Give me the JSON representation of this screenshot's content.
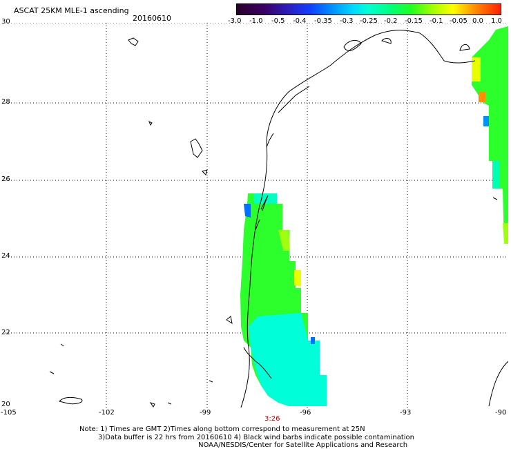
{
  "header": {
    "title": "ASCAT 25KM MLE-1 ascending",
    "date": "20160610"
  },
  "colorbar": {
    "ticks": [
      "-3.0",
      "-1.0",
      "-0.5",
      "-0.4",
      "-0.35",
      "-0.3",
      "-0.25",
      "-0.2",
      "-0.15",
      "-0.1",
      "-0.05",
      "0.0",
      "1.0"
    ]
  },
  "axes": {
    "lat_labels": [
      "30",
      "28",
      "26",
      "24",
      "22",
      "20"
    ],
    "lon_labels": [
      "-105",
      "-102",
      "-99",
      "-96",
      "-93",
      "-90"
    ]
  },
  "swath_time": "3:26",
  "notes": {
    "line1": "Note: 1) Times are GMT 2)Times along bottom correspond to measurement at 25N",
    "line2": "3)Data buffer is 22 hrs from 20160610 4) Black wind barbs indicate possible contamination",
    "line3": "NOAA/NESDIS/Center for Satellite Applications and Research"
  },
  "colors": {
    "swath_green": "#2cff2c",
    "swath_cyan": "#00ffd8",
    "swath_yellow": "#e8ff00"
  }
}
